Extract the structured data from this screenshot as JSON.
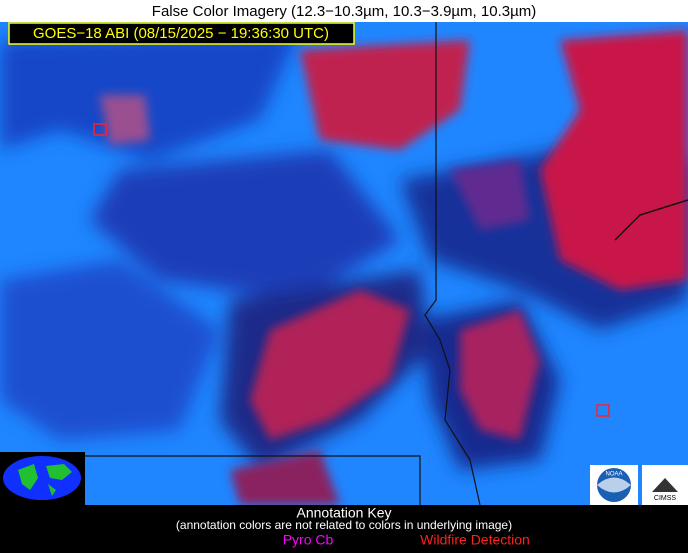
{
  "header": {
    "title": "False Color Imagery (12.3−10.3µm, 10.3−3.9µm, 10.3µm)",
    "timestamp": "GOES−18 ABI (08/15/2025 − 19:36:30 UTC)"
  },
  "annotation_key": {
    "title": "Annotation Key",
    "note": "(annotation colors are not related to colors in underlying image)",
    "items": [
      {
        "label": "Pyro Cb",
        "color": "#ff00ff"
      },
      {
        "label": "Wildfire Detection",
        "color": "#ff2020"
      }
    ]
  },
  "logos": {
    "left": "NOAA",
    "right": "CIMSS"
  }
}
